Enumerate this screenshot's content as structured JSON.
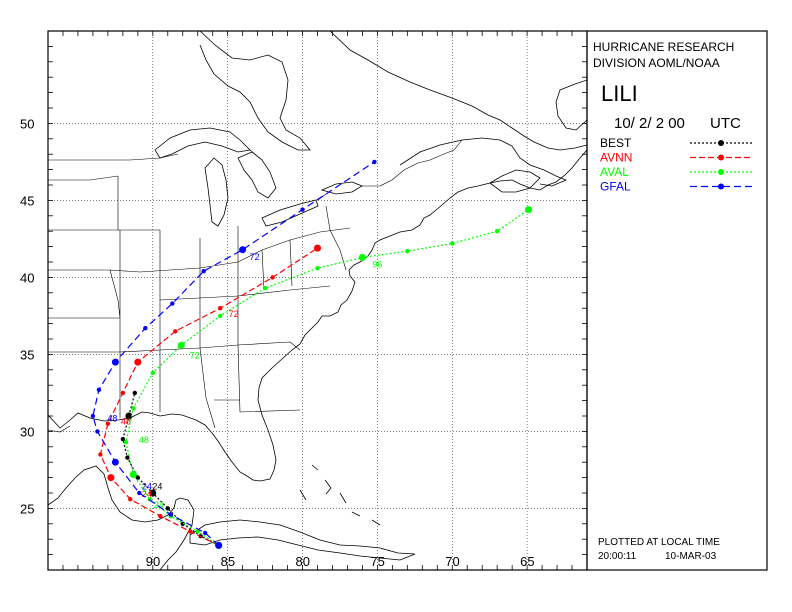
{
  "header": {
    "org_line1": "HURRICANE RESEARCH",
    "org_line2": "DIVISION AOML/NOAA",
    "storm_name": "LILI",
    "init_date": "10/ 2/ 2 00",
    "time_zone": "UTC"
  },
  "footer": {
    "plotted_note": "PLOTTED AT LOCAL TIME",
    "plot_time": "20:00:11",
    "plot_date": "10-MAR-03"
  },
  "axes": {
    "lon_min": 97,
    "lon_max": 61,
    "lat_min": 21,
    "lat_max": 56,
    "lat_ticks": [
      25,
      30,
      35,
      40,
      45,
      50
    ],
    "lat_tick_labels": [
      "25",
      "30",
      "35",
      "40",
      "45",
      "50"
    ],
    "lon_ticks": [
      90,
      85,
      80,
      75,
      70,
      65
    ],
    "lon_tick_labels": [
      "90",
      "85",
      "80",
      "75",
      "70",
      "65"
    ],
    "grid": "dotted"
  },
  "legend": {
    "items": [
      {
        "label": "BEST",
        "color": "#000000",
        "dash": "2 2"
      },
      {
        "label": "AVNN",
        "color": "#ff0000",
        "dash": "6 3"
      },
      {
        "label": "AVAL",
        "color": "#00ff00",
        "dash": "2 2"
      },
      {
        "label": "GFAL",
        "color": "#0000ff",
        "dash": "7 4"
      }
    ]
  },
  "chart_data": {
    "type": "line",
    "title": "LILI",
    "series": [
      {
        "name": "BEST",
        "color": "#000000",
        "points": [
          [
            22.6,
            85.6
          ],
          [
            23.2,
            86.8
          ],
          [
            24.0,
            88.0
          ],
          [
            25.0,
            89.0
          ],
          [
            26.0,
            90.0
          ],
          [
            27.0,
            91.0
          ],
          [
            28.3,
            91.7
          ],
          [
            29.5,
            92.0
          ],
          [
            31.0,
            91.6
          ],
          [
            32.5,
            91.2
          ]
        ],
        "tau_labels": [
          {
            "tau": "24",
            "lat": 26.5,
            "lon": 90.3
          }
        ]
      },
      {
        "name": "AVNN",
        "color": "#ff0000",
        "points": [
          [
            22.6,
            85.6
          ],
          [
            23.5,
            87.5
          ],
          [
            24.5,
            89.5
          ],
          [
            25.6,
            91.5
          ],
          [
            27.0,
            92.8
          ],
          [
            28.5,
            93.5
          ],
          [
            30.5,
            93.0
          ],
          [
            32.5,
            92.0
          ],
          [
            34.5,
            91.0
          ],
          [
            36.5,
            88.5
          ],
          [
            38.0,
            85.5
          ],
          [
            40.0,
            82.0
          ],
          [
            41.9,
            79.0
          ]
        ],
        "tau_labels": [
          {
            "tau": "24",
            "lat": 26.0,
            "lon": 91.0
          },
          {
            "tau": "48",
            "lat": 30.7,
            "lon": 92.4
          },
          {
            "tau": "72",
            "lat": 37.7,
            "lon": 85.2
          }
        ]
      },
      {
        "name": "AVAL",
        "color": "#00ff00",
        "points": [
          [
            22.6,
            85.6
          ],
          [
            23.5,
            87.0
          ],
          [
            24.5,
            88.8
          ],
          [
            25.6,
            90.2
          ],
          [
            27.2,
            91.3
          ],
          [
            29.3,
            91.8
          ],
          [
            31.5,
            91.3
          ],
          [
            33.8,
            90.0
          ],
          [
            35.6,
            88.1
          ],
          [
            37.5,
            85.5
          ],
          [
            39.3,
            82.5
          ],
          [
            40.6,
            79.0
          ],
          [
            41.3,
            76.0
          ],
          [
            41.7,
            73.0
          ],
          [
            42.2,
            70.0
          ],
          [
            43.0,
            67.0
          ],
          [
            44.4,
            64.9
          ]
        ],
        "tau_labels": [
          {
            "tau": "24",
            "lat": 25.3,
            "lon": 90.2
          },
          {
            "tau": "48",
            "lat": 29.5,
            "lon": 91.2
          },
          {
            "tau": "72",
            "lat": 35.0,
            "lon": 87.8
          },
          {
            "tau": "96",
            "lat": 40.9,
            "lon": 75.6
          }
        ]
      },
      {
        "name": "GFAL",
        "color": "#0000ff",
        "points": [
          [
            22.6,
            85.6
          ],
          [
            23.4,
            86.5
          ],
          [
            24.6,
            88.8
          ],
          [
            26.0,
            90.9
          ],
          [
            28.0,
            92.5
          ],
          [
            30.0,
            93.7
          ],
          [
            31.0,
            94.0
          ],
          [
            32.7,
            93.6
          ],
          [
            34.5,
            92.5
          ],
          [
            36.7,
            90.5
          ],
          [
            38.3,
            88.7
          ],
          [
            40.4,
            86.6
          ],
          [
            41.8,
            84.0
          ],
          [
            44.4,
            80.0
          ],
          [
            47.5,
            75.2
          ]
        ],
        "tau_labels": [
          {
            "tau": "24",
            "lat": 26.5,
            "lon": 91.0
          },
          {
            "tau": "48",
            "lat": 30.9,
            "lon": 93.3
          },
          {
            "tau": "72",
            "lat": 41.4,
            "lon": 83.8
          }
        ]
      }
    ]
  }
}
